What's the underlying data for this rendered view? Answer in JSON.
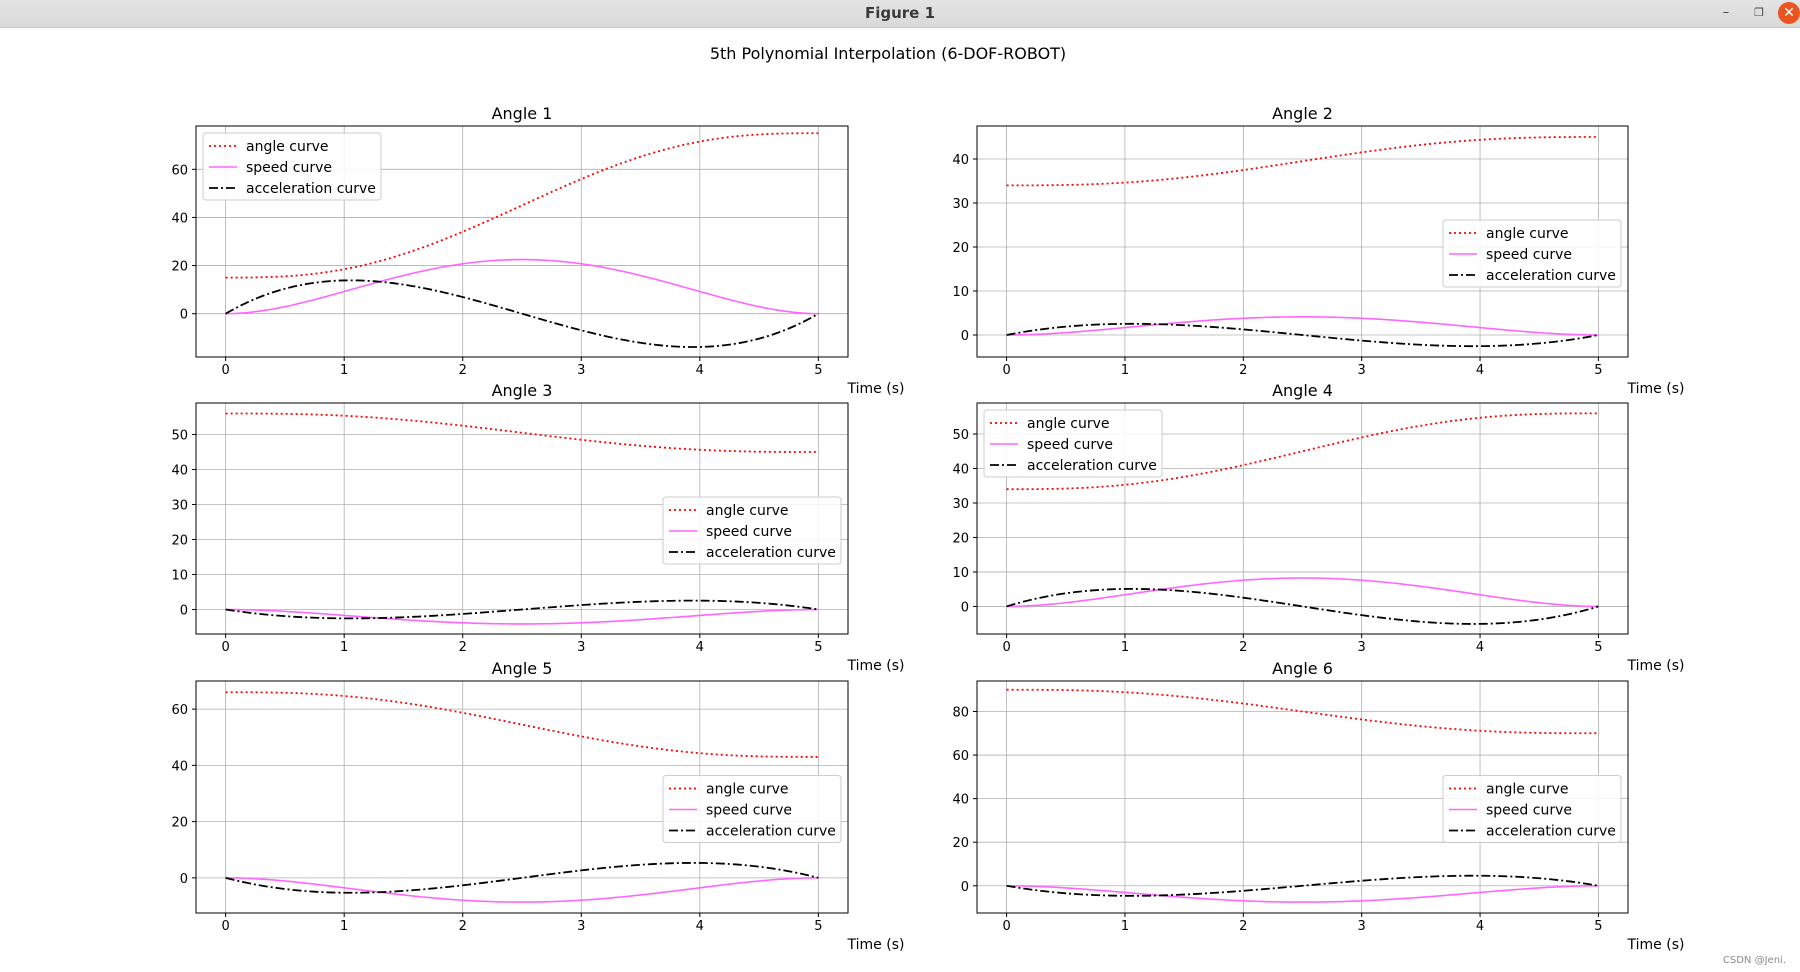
{
  "window": {
    "title": "Figure 1",
    "minimize_icon": "minimize-icon",
    "maximize_icon": "maximize-icon",
    "close_icon": "close-icon",
    "close_color": "#e95420"
  },
  "watermark": "CSDN @Jeni.",
  "suptitle": "5th Polynomial Interpolation (6-DOF-ROBOT)",
  "legend_labels": [
    "angle curve",
    "speed curve",
    "acceleration curve"
  ],
  "colors": {
    "angle": "#ff0000",
    "speed": "#ff66ff",
    "acceleration": "#000000",
    "grid": "#b0b0b0"
  },
  "chart_data": [
    {
      "type": "line",
      "title": "Angle 1",
      "xlabel": "Time (s)",
      "ylabel": "",
      "start": 15,
      "end": 75,
      "duration": 5,
      "xlim": [
        -0.25,
        5.25
      ],
      "ylim": [
        -18,
        78
      ],
      "xticks": [
        0,
        1,
        2,
        3,
        4,
        5
      ],
      "yticks": [
        0,
        20,
        40,
        60
      ],
      "legend": "upper-left",
      "grid": true,
      "series": [
        {
          "name": "angle curve",
          "formula": "quintic position"
        },
        {
          "name": "speed curve",
          "formula": "first derivative"
        },
        {
          "name": "acceleration curve",
          "formula": "second derivative"
        }
      ]
    },
    {
      "type": "line",
      "title": "Angle 2",
      "xlabel": "Time (s)",
      "ylabel": "",
      "start": 34,
      "end": 45,
      "duration": 5,
      "xlim": [
        -0.25,
        5.25
      ],
      "ylim": [
        -5,
        47.5
      ],
      "xticks": [
        0,
        1,
        2,
        3,
        4,
        5
      ],
      "yticks": [
        0,
        10,
        20,
        30,
        40
      ],
      "legend": "center-right",
      "grid": true,
      "series": [
        {
          "name": "angle curve",
          "formula": "quintic position"
        },
        {
          "name": "speed curve",
          "formula": "first derivative"
        },
        {
          "name": "acceleration curve",
          "formula": "second derivative"
        }
      ]
    },
    {
      "type": "line",
      "title": "Angle 3",
      "xlabel": "Time (s)",
      "ylabel": "",
      "start": 56,
      "end": 45,
      "duration": 5,
      "xlim": [
        -0.25,
        5.25
      ],
      "ylim": [
        -7,
        59
      ],
      "xticks": [
        0,
        1,
        2,
        3,
        4,
        5
      ],
      "yticks": [
        0,
        10,
        20,
        30,
        40,
        50
      ],
      "legend": "center-right",
      "grid": true,
      "series": [
        {
          "name": "angle curve",
          "formula": "quintic position"
        },
        {
          "name": "speed curve",
          "formula": "first derivative"
        },
        {
          "name": "acceleration curve",
          "formula": "second derivative"
        }
      ]
    },
    {
      "type": "line",
      "title": "Angle 4",
      "xlabel": "Time (s)",
      "ylabel": "",
      "start": 34,
      "end": 56,
      "duration": 5,
      "xlim": [
        -0.25,
        5.25
      ],
      "ylim": [
        -8,
        59
      ],
      "xticks": [
        0,
        1,
        2,
        3,
        4,
        5
      ],
      "yticks": [
        0,
        10,
        20,
        30,
        40,
        50
      ],
      "legend": "upper-left",
      "grid": true,
      "series": [
        {
          "name": "angle curve",
          "formula": "quintic position"
        },
        {
          "name": "speed curve",
          "formula": "first derivative"
        },
        {
          "name": "acceleration curve",
          "formula": "second derivative"
        }
      ]
    },
    {
      "type": "line",
      "title": "Angle 5",
      "xlabel": "Time (s)",
      "ylabel": "",
      "start": 66,
      "end": 43,
      "duration": 5,
      "xlim": [
        -0.25,
        5.25
      ],
      "ylim": [
        -12.5,
        70
      ],
      "xticks": [
        0,
        1,
        2,
        3,
        4,
        5
      ],
      "yticks": [
        0,
        20,
        40,
        60
      ],
      "legend": "center-right",
      "grid": true,
      "series": [
        {
          "name": "angle curve",
          "formula": "quintic position"
        },
        {
          "name": "speed curve",
          "formula": "first derivative"
        },
        {
          "name": "acceleration curve",
          "formula": "second derivative"
        }
      ]
    },
    {
      "type": "line",
      "title": "Angle 6",
      "xlabel": "Time (s)",
      "ylabel": "",
      "start": 90,
      "end": 70,
      "duration": 5,
      "xlim": [
        -0.25,
        5.25
      ],
      "ylim": [
        -12.5,
        94
      ],
      "xticks": [
        0,
        1,
        2,
        3,
        4,
        5
      ],
      "yticks": [
        0,
        20,
        40,
        60,
        80
      ],
      "legend": "center-right",
      "grid": true,
      "series": [
        {
          "name": "angle curve",
          "formula": "quintic position"
        },
        {
          "name": "speed curve",
          "formula": "first derivative"
        },
        {
          "name": "acceleration curve",
          "formula": "second derivative"
        }
      ]
    }
  ]
}
